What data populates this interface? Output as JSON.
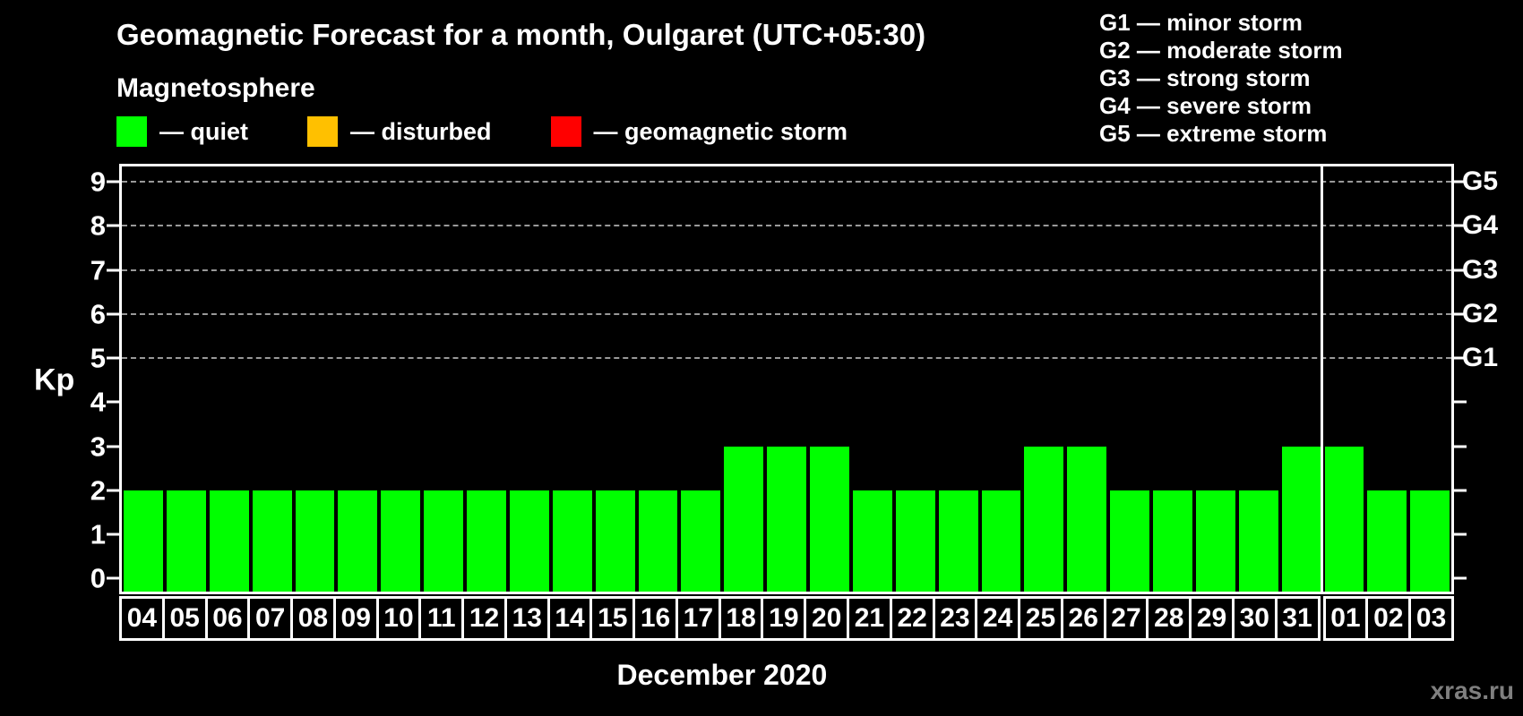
{
  "title": "Geomagnetic Forecast for a month, Oulgaret (UTC+05:30)",
  "legend": {
    "heading": "Magnetosphere",
    "items": [
      {
        "name": "quiet",
        "label": "— quiet",
        "color": "#00ff00"
      },
      {
        "name": "disturbed",
        "label": "— disturbed",
        "color": "#ffc000"
      },
      {
        "name": "geomagnetic-storm",
        "label": "— geomagnetic storm",
        "color": "#ff0000"
      }
    ]
  },
  "storm_legend": {
    "items": [
      "G1 — minor storm",
      "G2 — moderate storm",
      "G3 — strong storm",
      "G4 — severe storm",
      "G5 — extreme storm"
    ]
  },
  "watermark": "xras.ru",
  "chart_data": {
    "type": "bar",
    "title": "Geomagnetic Forecast for a month, Oulgaret (UTC+05:30)",
    "xlabel": "December 2020",
    "ylabel": "Kp",
    "categories": [
      "04",
      "05",
      "06",
      "07",
      "08",
      "09",
      "10",
      "11",
      "12",
      "13",
      "14",
      "15",
      "16",
      "17",
      "18",
      "19",
      "20",
      "21",
      "22",
      "23",
      "24",
      "25",
      "26",
      "27",
      "28",
      "29",
      "30",
      "31",
      "01",
      "02",
      "03"
    ],
    "values": [
      2,
      2,
      2,
      2,
      2,
      2,
      2,
      2,
      2,
      2,
      2,
      2,
      2,
      2,
      3,
      3,
      3,
      2,
      2,
      2,
      2,
      3,
      3,
      2,
      2,
      2,
      2,
      3,
      3,
      2,
      2
    ],
    "bar_color": "#00ff00",
    "ylim": [
      -0.3,
      9.35
    ],
    "y_ticks": [
      0,
      1,
      2,
      3,
      4,
      5,
      6,
      7,
      8,
      9
    ],
    "right_axis_labels": [
      {
        "text": "G1",
        "value": 5
      },
      {
        "text": "G2",
        "value": 6
      },
      {
        "text": "G3",
        "value": 7
      },
      {
        "text": "G4",
        "value": 8
      },
      {
        "text": "G5",
        "value": 9
      }
    ],
    "gridlines": [
      5,
      6,
      7,
      8,
      9
    ],
    "grid": "dashed horizontal lines at storm levels G1–G5",
    "legend_position": "top"
  }
}
